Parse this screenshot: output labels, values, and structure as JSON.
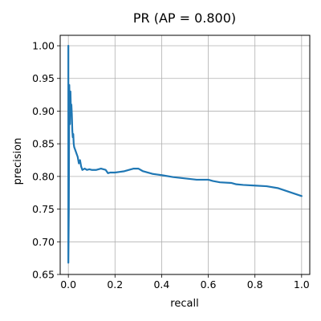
{
  "chart_data": {
    "type": "line",
    "title": "PR  (AP = 0.800)",
    "xlabel": "recall",
    "ylabel": "precision",
    "xlim": [
      -0.035,
      1.035
    ],
    "ylim": [
      0.65,
      1.016
    ],
    "grid": true,
    "x_ticks": [
      0.0,
      0.2,
      0.4,
      0.6,
      0.8,
      1.0
    ],
    "x_tick_labels": [
      "0.0",
      "0.2",
      "0.4",
      "0.6",
      "0.8",
      "1.0"
    ],
    "y_ticks": [
      0.65,
      0.7,
      0.75,
      0.8,
      0.85,
      0.9,
      0.95,
      1.0
    ],
    "y_tick_labels": [
      "0.65",
      "0.70",
      "0.75",
      "0.80",
      "0.85",
      "0.90",
      "0.95",
      "1.00"
    ],
    "series": [
      {
        "color": "#1f77b4",
        "x": [
          0.0,
          0.0,
          0.0,
          0.0,
          0.0,
          0.002,
          0.004,
          0.005,
          0.007,
          0.009,
          0.011,
          0.013,
          0.015,
          0.017,
          0.019,
          0.021,
          0.023,
          0.025,
          0.03,
          0.035,
          0.04,
          0.045,
          0.05,
          0.055,
          0.06,
          0.07,
          0.08,
          0.09,
          0.1,
          0.12,
          0.14,
          0.16,
          0.17,
          0.18,
          0.2,
          0.22,
          0.24,
          0.26,
          0.28,
          0.3,
          0.32,
          0.34,
          0.36,
          0.38,
          0.4,
          0.45,
          0.5,
          0.55,
          0.6,
          0.62,
          0.65,
          0.7,
          0.72,
          0.75,
          0.8,
          0.85,
          0.9,
          0.95,
          1.0
        ],
        "y": [
          1.0,
          0.98,
          0.9,
          0.8,
          0.668,
          0.75,
          0.94,
          0.92,
          0.88,
          0.93,
          0.9,
          0.91,
          0.895,
          0.87,
          0.86,
          0.865,
          0.85,
          0.845,
          0.84,
          0.835,
          0.83,
          0.82,
          0.825,
          0.815,
          0.81,
          0.812,
          0.81,
          0.811,
          0.81,
          0.81,
          0.812,
          0.81,
          0.805,
          0.806,
          0.806,
          0.807,
          0.808,
          0.81,
          0.812,
          0.812,
          0.808,
          0.806,
          0.804,
          0.803,
          0.802,
          0.799,
          0.797,
          0.795,
          0.795,
          0.793,
          0.791,
          0.79,
          0.788,
          0.787,
          0.786,
          0.785,
          0.782,
          0.776,
          0.77
        ]
      }
    ]
  }
}
